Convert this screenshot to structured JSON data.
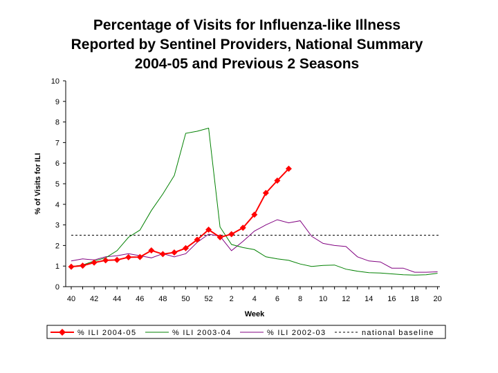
{
  "chart_data": {
    "type": "line",
    "title_lines": [
      "Percentage of Visits for Influenza-like Illness",
      "Reported by Sentinel Providers, National Summary",
      "2004-05 and Previous 2 Seasons"
    ],
    "xlabel": "Week",
    "ylabel": "% of Visits for ILI",
    "ylim": [
      0,
      10
    ],
    "y_ticks": [
      "0",
      "1",
      "2",
      "3",
      "4",
      "5",
      "6",
      "7",
      "8",
      "9",
      "10"
    ],
    "x_tick_labels": [
      "40",
      "42",
      "44",
      "46",
      "48",
      "50",
      "52",
      "2",
      "4",
      "6",
      "8",
      "10",
      "12",
      "14",
      "16",
      "18",
      "20"
    ],
    "weeks": [
      "40",
      "41",
      "42",
      "43",
      "44",
      "45",
      "46",
      "47",
      "48",
      "49",
      "50",
      "51",
      "52",
      "1",
      "2",
      "3",
      "4",
      "5",
      "6",
      "7",
      "8",
      "9",
      "10",
      "11",
      "12",
      "13",
      "14",
      "15",
      "16",
      "17",
      "18",
      "19",
      "20"
    ],
    "baseline": 2.5,
    "legend_position": "bottom",
    "series": [
      {
        "name": "% ILI 2004-05",
        "color": "#ff0000",
        "marker": "diamond",
        "values": [
          0.97,
          1.02,
          1.17,
          1.28,
          1.3,
          1.43,
          1.44,
          1.76,
          1.58,
          1.66,
          1.87,
          2.28,
          2.77,
          2.4,
          2.55,
          2.86,
          3.5,
          4.55,
          5.15,
          5.73
        ]
      },
      {
        "name": "% ILI 2003-04",
        "color": "#008000",
        "marker": "none",
        "values": [
          0.98,
          1.05,
          1.25,
          1.4,
          1.75,
          2.4,
          2.75,
          3.7,
          4.5,
          5.4,
          7.45,
          7.55,
          7.7,
          2.9,
          2.05,
          1.9,
          1.8,
          1.45,
          1.35,
          1.28,
          1.1,
          0.98,
          1.03,
          1.05,
          0.85,
          0.75,
          0.68,
          0.66,
          0.62,
          0.58,
          0.56,
          0.58,
          0.65
        ]
      },
      {
        "name": "% ILI 2002-03",
        "color": "#800080",
        "marker": "none",
        "values": [
          1.25,
          1.35,
          1.3,
          1.45,
          1.5,
          1.6,
          1.5,
          1.4,
          1.6,
          1.45,
          1.6,
          2.15,
          2.55,
          2.45,
          1.75,
          2.2,
          2.7,
          3.0,
          3.25,
          3.1,
          3.2,
          2.45,
          2.1,
          2.0,
          1.95,
          1.45,
          1.25,
          1.2,
          0.9,
          0.9,
          0.7,
          0.7,
          0.72
        ]
      },
      {
        "name": "national baseline",
        "color": "#000000",
        "marker": "none",
        "dashed": true
      }
    ],
    "legend_labels": [
      "% ILI 2004-05",
      "% ILI 2003-04",
      "% ILI 2002-03",
      "national baseline"
    ]
  }
}
